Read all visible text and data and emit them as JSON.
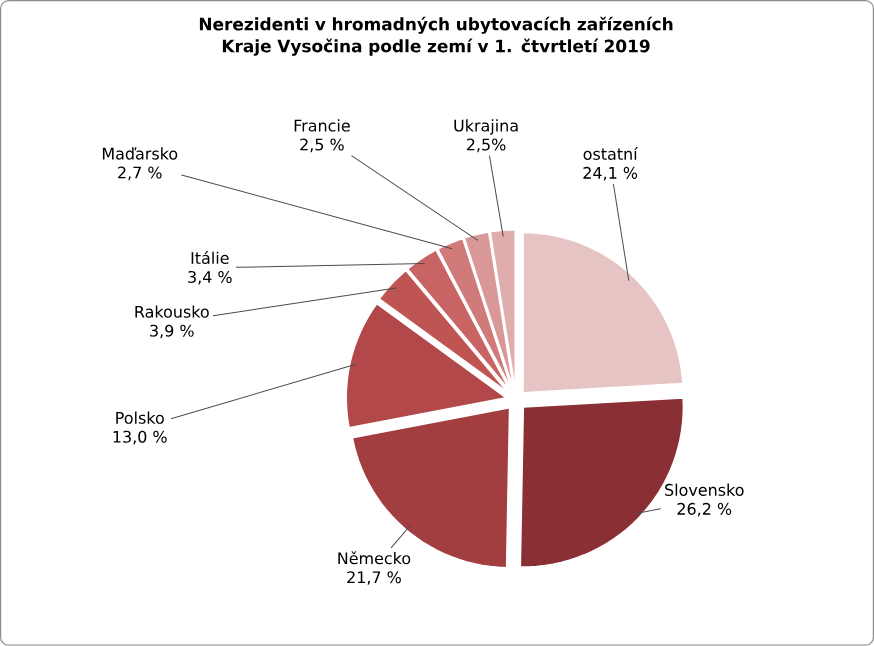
{
  "chart_data": {
    "type": "pie",
    "title": "Nerezidenti v hromadných ubytovacích zařízeních Kraje Vysočina podle zemí v 1. čtvrtletí 2019",
    "categories": [
      "ostatní",
      "Slovensko",
      "Německo",
      "Polsko",
      "Rakousko",
      "Itálie",
      "Maďarsko",
      "Francie",
      "Ukrajina"
    ],
    "values": [
      24.1,
      26.2,
      21.7,
      13.0,
      3.9,
      3.4,
      2.7,
      2.5,
      2.5
    ],
    "value_labels": [
      "24,1 %",
      "26,2 %",
      "21,7 %",
      "13,0 %",
      "3,9 %",
      "3,4 %",
      "2,7 %",
      "2,5 %",
      "2,5%"
    ],
    "colors": [
      "#e6c4c4",
      "#8a2f33",
      "#a23d40",
      "#b24849",
      "#bf5553",
      "#c96464",
      "#d07a7a",
      "#d99797",
      "#e0adad"
    ]
  }
}
